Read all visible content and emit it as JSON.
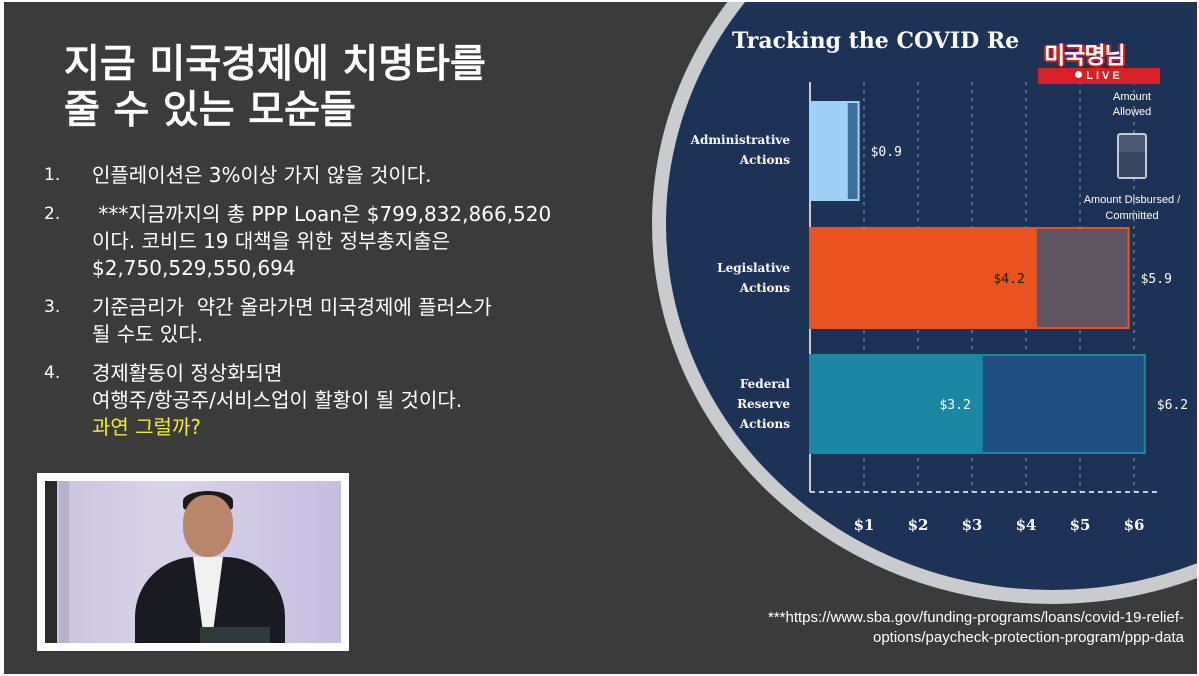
{
  "slide": {
    "title_lines": [
      "지금 미국경제에 치명타를",
      "줄 수 있는 모순들"
    ],
    "points": [
      {
        "num": "1.",
        "lines": [
          "인플레이션은 3%이상 가지 않을 것이다."
        ],
        "highlight": ""
      },
      {
        "num": "2.",
        "lines": [
          " ***지금까지의 총 PPP Loan은 $799,832,866,520",
          "이다. 코비드 19 대책을 위한 정부총지출은",
          "$2,750,529,550,694"
        ],
        "highlight": ""
      },
      {
        "num": "3.",
        "lines": [
          "기준금리가  약간 올라가면 미국경제에 플러스가",
          "될 수도 있다."
        ],
        "highlight": ""
      },
      {
        "num": "4.",
        "lines": [
          "경제활동이 정상화되면",
          "여행주/항공주/서비스업이 활황이 될 것이다."
        ],
        "highlight": "과연 그럴까?"
      }
    ],
    "source_lines": [
      "***https://www.sba.gov/funding-programs/loans/covid-19-relief-",
      "options/paycheck-protection-program/ppp-data"
    ]
  },
  "badge": {
    "logo": "미국명님",
    "live": "LIVE"
  },
  "colors": {
    "background": "#3b3b3b",
    "highlight": "#f2ee2a",
    "chart_bg": "#1d3355",
    "admin": "#9fd0f5",
    "legislative": "#e8531f",
    "federal": "#1b87a3"
  },
  "chart_data": {
    "type": "bar",
    "orientation": "horizontal",
    "title": "Tracking the COVID Re",
    "categories": [
      {
        "key": "admin",
        "label_lines": [
          "Administrative",
          "Actions"
        ]
      },
      {
        "key": "legislative",
        "label_lines": [
          "Legislative",
          "Actions"
        ]
      },
      {
        "key": "federal",
        "label_lines": [
          "Federal",
          "Reserve",
          "Actions"
        ]
      }
    ],
    "series": [
      {
        "name": "Amount Disbursed / Committed",
        "values": [
          0.7,
          4.2,
          3.2
        ],
        "labels": [
          "",
          "$4.2",
          "$3.2"
        ]
      },
      {
        "name": "Amount Allowed",
        "values": [
          0.9,
          5.9,
          6.2
        ],
        "labels": [
          "$0.9",
          "$5.9",
          "$6.2"
        ]
      }
    ],
    "legend": {
      "allowed": "Amount Allowed",
      "disbursed": "Amount Disbursed / Committed",
      "placement": "right"
    },
    "x_ticks": [
      "$1",
      "$2",
      "$3",
      "$4",
      "$5",
      "$6"
    ],
    "x_tick_values": [
      1,
      2,
      3,
      4,
      5,
      6
    ],
    "xlim": [
      0,
      6.5
    ],
    "grid": true
  }
}
